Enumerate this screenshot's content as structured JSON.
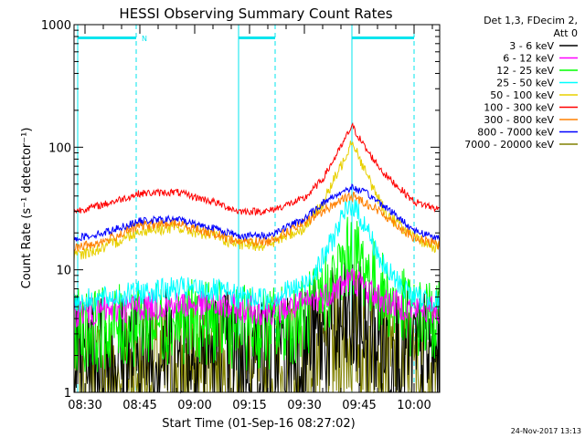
{
  "chart_data": {
    "type": "line",
    "title": "HESSI Observing Summary Count Rates",
    "xlabel": "Start Time (01-Sep-16 08:27:02)",
    "ylabel": "Count Rate (s⁻¹ detector⁻¹)",
    "yscale": "log",
    "ylim": [
      1,
      1000
    ],
    "xlim": [
      "08:27",
      "10:07"
    ],
    "x_ticks": [
      "08:30",
      "08:45",
      "09:00",
      "09:15",
      "09:30",
      "09:45",
      "10:00"
    ],
    "y_ticks": [
      "1",
      "10",
      "100",
      "1000"
    ],
    "legend_header": [
      "Det 1,3, FDecim 2,",
      "Att 0"
    ],
    "legend_position": "top-right-outside",
    "grid": false,
    "time_samples": [
      "08:27",
      "08:35",
      "08:45",
      "08:55",
      "09:05",
      "09:12",
      "09:20",
      "09:30",
      "09:35",
      "09:40",
      "09:43",
      "09:47",
      "09:52",
      "10:00",
      "10:07"
    ],
    "series": [
      {
        "name": "3 - 6 keV",
        "color": "#000000",
        "values": [
          2.0,
          2.0,
          2.1,
          2.2,
          2.2,
          2.0,
          1.8,
          2.3,
          2.8,
          3.2,
          3.5,
          3.2,
          2.5,
          2.0,
          1.9
        ]
      },
      {
        "name": "6 - 12 keV",
        "color": "#ff00ff",
        "values": [
          4.5,
          4.6,
          5.0,
          5.2,
          5.1,
          4.8,
          4.6,
          5.2,
          6.0,
          7.5,
          8.5,
          7.0,
          5.5,
          4.8,
          4.6
        ]
      },
      {
        "name": "12 - 25 keV",
        "color": "#00ff00",
        "values": [
          3.2,
          3.3,
          3.6,
          3.8,
          3.7,
          3.4,
          3.3,
          4.0,
          6.0,
          10.0,
          14.0,
          10.0,
          6.0,
          4.0,
          3.8
        ]
      },
      {
        "name": "25 - 50 keV",
        "color": "#00ffff",
        "values": [
          5.5,
          5.8,
          6.5,
          7.0,
          6.8,
          6.0,
          5.8,
          7.5,
          12.0,
          25.0,
          35.0,
          22.0,
          10.0,
          6.0,
          5.5
        ]
      },
      {
        "name": "50 - 100 keV",
        "color": "#e8d000",
        "values": [
          13.0,
          15.0,
          21.0,
          22.0,
          19.0,
          16.0,
          16.0,
          22.0,
          35.0,
          70.0,
          115.0,
          60.0,
          30.0,
          18.0,
          15.0
        ]
      },
      {
        "name": "100 - 300 keV",
        "color": "#ff0000",
        "values": [
          30.0,
          34.0,
          42.0,
          43.0,
          36.0,
          30.0,
          30.0,
          38.0,
          55.0,
          100.0,
          150.0,
          95.0,
          60.0,
          36.0,
          31.0
        ]
      },
      {
        "name": "300 - 800 keV",
        "color": "#ff8000",
        "values": [
          15.0,
          17.0,
          23.0,
          24.0,
          20.0,
          17.0,
          17.0,
          24.0,
          30.0,
          37.0,
          40.0,
          35.0,
          28.0,
          18.0,
          16.0
        ]
      },
      {
        "name": "800 - 7000 keV",
        "color": "#0000ff",
        "values": [
          18.0,
          20.0,
          25.0,
          26.0,
          22.0,
          19.0,
          19.0,
          26.0,
          35.0,
          43.0,
          47.0,
          42.0,
          33.0,
          21.0,
          18.0
        ]
      },
      {
        "name": "7000 - 20000 keV",
        "color": "#808000",
        "values": [
          1.2,
          1.3,
          1.4,
          1.5,
          1.4,
          1.3,
          1.2,
          1.6,
          2.0,
          2.5,
          3.0,
          2.5,
          1.8,
          1.4,
          1.3
        ]
      }
    ],
    "annotations": [
      {
        "type": "cyan-bar",
        "label": "N",
        "start": "08:28",
        "end": "08:44"
      },
      {
        "type": "cyan-bar",
        "label": "",
        "start": "09:12",
        "end": "09:22"
      },
      {
        "type": "cyan-bar",
        "label": "",
        "start": "09:43",
        "end": "10:00"
      }
    ],
    "vertical_markers": {
      "solid": [
        "08:28",
        "09:12",
        "09:43"
      ],
      "dashed": [
        "08:44",
        "09:22",
        "10:00"
      ]
    }
  },
  "footer": {
    "date_stamp": "24-Nov-2017 13:13"
  }
}
